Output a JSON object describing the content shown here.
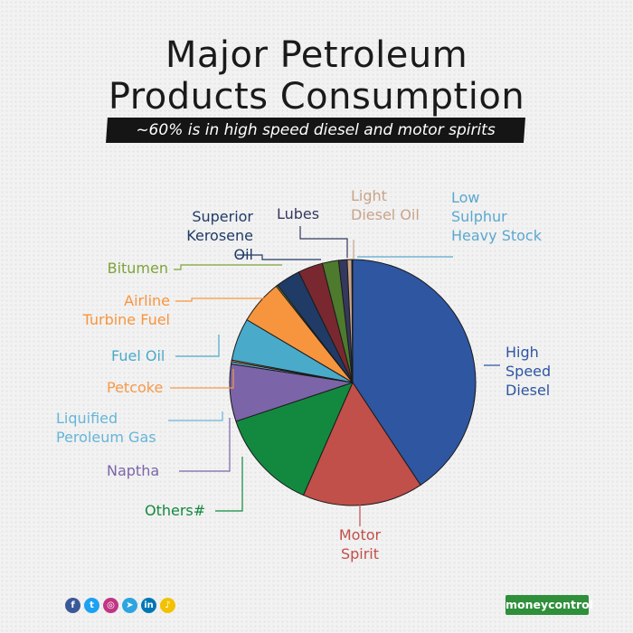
{
  "title_line1": "Major Petroleum",
  "title_line2": "Products Consumption",
  "subtitle": "~60% is in high speed diesel and motor spirits",
  "brand": "moneycontrol",
  "social_icons": [
    {
      "name": "facebook-icon",
      "glyph": "f",
      "color": "#3b5998"
    },
    {
      "name": "twitter-icon",
      "glyph": "t",
      "color": "#1da1f2"
    },
    {
      "name": "instagram-icon",
      "glyph": "◎",
      "color": "#c13584"
    },
    {
      "name": "telegram-icon",
      "glyph": "➤",
      "color": "#2ca5e0"
    },
    {
      "name": "linkedin-icon",
      "glyph": "in",
      "color": "#0077b5"
    },
    {
      "name": "koo-icon",
      "glyph": "♪",
      "color": "#f2c200"
    }
  ],
  "chart_data": {
    "type": "pie",
    "slices": [
      {
        "label": [
          "High",
          "Speed",
          "Diesel"
        ],
        "value": 40.0,
        "color": "#2e56a1"
      },
      {
        "label": [
          "Motor",
          "Spirit"
        ],
        "value": 15.6,
        "color": "#c14f4a"
      },
      {
        "label": [
          "Others#"
        ],
        "value": 13.1,
        "color": "#13893f"
      },
      {
        "label": [
          "Naptha"
        ],
        "value": 7.4,
        "color": "#7c64a8"
      },
      {
        "label": [
          "Liquified",
          "Peroleum Gas"
        ],
        "value": 0.3,
        "color": "#66b6d8"
      },
      {
        "label": [
          "Petcoke"
        ],
        "value": 0.2,
        "color": "#f59a4b"
      },
      {
        "label": [
          "Fuel Oil"
        ],
        "value": 5.5,
        "color": "#4aaac9"
      },
      {
        "label": [
          "Airline",
          "Turbine Fuel"
        ],
        "value": 5.7,
        "color": "#f7953e"
      },
      {
        "label": [
          "Bitumen"
        ],
        "value": 0.2,
        "color": "#7ea33a"
      },
      {
        "label": [
          "Superior",
          "Kerosene",
          "Oil"
        ],
        "value": 3.2,
        "color": "#1f3b66"
      },
      {
        "label": [],
        "value": 3.2,
        "color": "#7a2830"
      },
      {
        "label": [],
        "value": 2.1,
        "color": "#4d7a2c"
      },
      {
        "label": [
          "Lubes"
        ],
        "value": 1.1,
        "color": "#34385e"
      },
      {
        "label": [
          "Light",
          "Diesel Oil"
        ],
        "value": 0.6,
        "color": "#c8a48a"
      },
      {
        "label": [
          "Low",
          "Sulphur",
          "Heavy Stock"
        ],
        "value": 0.1,
        "color": "#5ba8cf"
      }
    ]
  }
}
